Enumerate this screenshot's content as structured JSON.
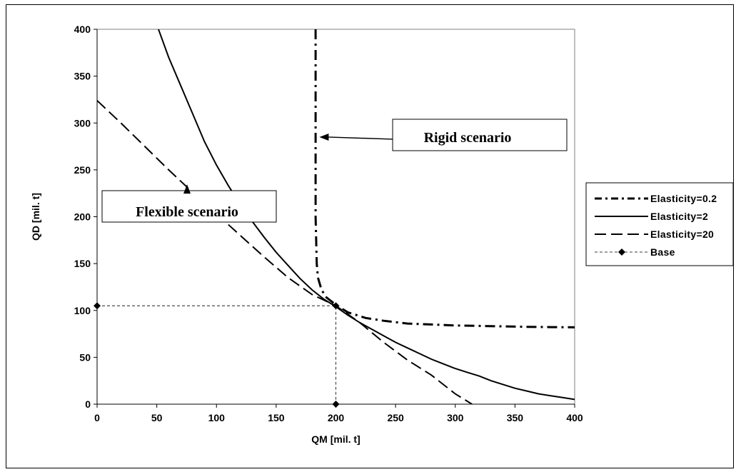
{
  "chart_data": {
    "type": "line",
    "xlabel": "QM [mil. t]",
    "ylabel": "QD [mil. t]",
    "xlim": [
      0,
      400
    ],
    "ylim": [
      0,
      400
    ],
    "x_ticks": [
      0,
      50,
      100,
      150,
      200,
      250,
      300,
      350,
      400
    ],
    "y_ticks": [
      0,
      50,
      100,
      150,
      200,
      250,
      300,
      350,
      400
    ],
    "grid": false,
    "legend_position": "right",
    "series": [
      {
        "name": "Elasticity=0.2",
        "style": "dash-dot",
        "x": [
          183,
          183,
          183,
          184,
          185,
          188,
          192,
          200,
          210,
          225,
          240,
          260,
          280,
          300,
          320,
          340,
          360,
          380,
          405
        ],
        "y": [
          400,
          300,
          200,
          150,
          135,
          122,
          114,
          106,
          98,
          92,
          89,
          86,
          85,
          84,
          83.5,
          83,
          82.5,
          82.2,
          82
        ]
      },
      {
        "name": "Elasticity=2",
        "style": "solid",
        "x": [
          50,
          60,
          70,
          80,
          90,
          100,
          110,
          120,
          130,
          140,
          150,
          160,
          170,
          180,
          190,
          200,
          210,
          220,
          230,
          240,
          250,
          260,
          270,
          280,
          290,
          300,
          310,
          320,
          330,
          340,
          350,
          360,
          370,
          380,
          390,
          400,
          405
        ],
        "y": [
          405,
          370,
          340,
          310,
          280,
          255,
          233,
          213,
          195,
          178,
          162,
          148,
          134,
          122,
          112,
          104,
          95,
          87,
          80,
          73,
          66,
          60,
          54,
          48,
          43,
          38,
          34,
          30,
          25,
          21,
          17,
          14,
          11,
          9,
          7,
          5,
          4
        ]
      },
      {
        "name": "Elasticity=20",
        "style": "dash",
        "x": [
          0,
          20,
          40,
          60,
          80,
          100,
          120,
          140,
          160,
          180,
          200,
          220,
          240,
          260,
          280,
          300,
          314
        ],
        "y": [
          324,
          300,
          275,
          250,
          226,
          203,
          180,
          157,
          135,
          117,
          105,
          87,
          66,
          47,
          31,
          11,
          0
        ]
      },
      {
        "name": "Base",
        "style": "dotted-marker",
        "x": [
          0,
          200,
          200
        ],
        "y": [
          105,
          105,
          0
        ]
      }
    ],
    "annotations": [
      {
        "text": "Rigid scenario",
        "arrow_to": [
          185,
          285
        ]
      },
      {
        "text": "Flexible scenario",
        "arrow_to": [
          90,
          230
        ]
      }
    ]
  },
  "colors": {
    "line": "#000000",
    "background": "#ffffff"
  }
}
